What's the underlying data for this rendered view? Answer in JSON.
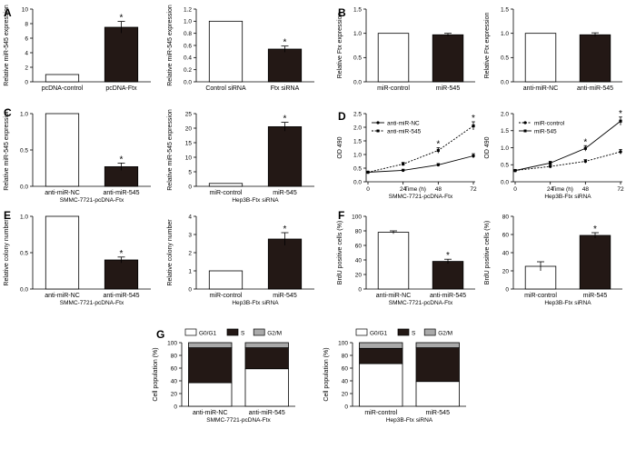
{
  "chart_data": [
    {
      "id": "A1",
      "panel": "A",
      "type": "bar",
      "categories": [
        "pcDNA-control",
        "pcDNA-Ftx"
      ],
      "values": [
        1.0,
        7.5
      ],
      "errors": [
        0,
        0.8
      ],
      "colors": [
        "#ffffff",
        "#231815"
      ],
      "star": [
        false,
        true
      ],
      "ylabel": "Relative miR-545 expression",
      "ylim": [
        0,
        10
      ],
      "ticks": [
        0,
        2,
        4,
        6,
        8,
        10
      ],
      "subtitle": ""
    },
    {
      "id": "A2",
      "panel": "",
      "type": "bar",
      "categories": [
        "Control siRNA",
        "Ftx siRNA"
      ],
      "values": [
        1.0,
        0.54
      ],
      "errors": [
        0,
        0.05
      ],
      "colors": [
        "#ffffff",
        "#231815"
      ],
      "star": [
        false,
        true
      ],
      "ylabel": "Relative miR-545 expression",
      "ylim": [
        0,
        1.2
      ],
      "ticks": [
        0.0,
        0.2,
        0.4,
        0.6,
        0.8,
        1.0,
        1.2
      ],
      "subtitle": ""
    },
    {
      "id": "B1",
      "panel": "B",
      "type": "bar",
      "categories": [
        "miR-control",
        "miR-545"
      ],
      "values": [
        1.0,
        0.97
      ],
      "errors": [
        0,
        0.03
      ],
      "colors": [
        "#ffffff",
        "#231815"
      ],
      "star": [
        false,
        false
      ],
      "ylabel": "Relative Ftx expression",
      "ylim": [
        0,
        1.5
      ],
      "ticks": [
        0.0,
        0.5,
        1.0,
        1.5
      ],
      "subtitle": ""
    },
    {
      "id": "B2",
      "panel": "",
      "type": "bar",
      "categories": [
        "anti-miR-NC",
        "anti-miR-545"
      ],
      "values": [
        1.0,
        0.97
      ],
      "errors": [
        0,
        0.04
      ],
      "colors": [
        "#ffffff",
        "#231815"
      ],
      "star": [
        false,
        false
      ],
      "ylabel": "Relative Ftx expression",
      "ylim": [
        0,
        1.5
      ],
      "ticks": [
        0.0,
        0.5,
        1.0,
        1.5
      ],
      "subtitle": ""
    },
    {
      "id": "C1",
      "panel": "C",
      "type": "bar",
      "categories": [
        "anti-miR-NC",
        "anti-miR-545"
      ],
      "values": [
        1.0,
        0.27
      ],
      "errors": [
        0,
        0.05
      ],
      "colors": [
        "#ffffff",
        "#231815"
      ],
      "star": [
        false,
        true
      ],
      "ylabel": "Relative miR-545 expression",
      "ylim": [
        0,
        1.0
      ],
      "ticks": [
        0.0,
        0.5,
        1.0
      ],
      "subtitle": "SMMC-7721-pcDNA-Ftx"
    },
    {
      "id": "C2",
      "panel": "",
      "type": "bar",
      "categories": [
        "miR-control",
        "miR-545"
      ],
      "values": [
        1.0,
        20.5
      ],
      "errors": [
        0,
        1.5
      ],
      "colors": [
        "#ffffff",
        "#231815"
      ],
      "star": [
        false,
        true
      ],
      "ylabel": "Relative miR-545 expression",
      "ylim": [
        0,
        25
      ],
      "ticks": [
        0,
        5,
        10,
        15,
        20,
        25
      ],
      "subtitle": "Hep3B-Ftx siRNA"
    },
    {
      "id": "D1",
      "panel": "D",
      "type": "line",
      "x": [
        0,
        24,
        48,
        72
      ],
      "xticks": [
        0,
        24,
        48,
        72
      ],
      "xlabel": "Time (h)",
      "ylabel": "OD 490",
      "ylim": [
        0,
        2.5
      ],
      "ticks": [
        0.0,
        0.5,
        1.0,
        1.5,
        2.0,
        2.5
      ],
      "subtitle": "SMMC-7721-pcDNA-Ftx",
      "series": [
        {
          "name": "anti-miR-NC",
          "values": [
            0.35,
            0.42,
            0.62,
            0.95
          ],
          "errors": [
            0.02,
            0.04,
            0.05,
            0.08
          ],
          "dashed": false,
          "marker": "circle"
        },
        {
          "name": "anti-miR-545",
          "values": [
            0.35,
            0.65,
            1.15,
            2.05
          ],
          "errors": [
            0.02,
            0.06,
            0.1,
            0.15
          ],
          "dashed": true,
          "marker": "square"
        }
      ],
      "stars": [
        {
          "series": 1,
          "index": 2
        },
        {
          "series": 1,
          "index": 3
        }
      ]
    },
    {
      "id": "D2",
      "panel": "",
      "type": "line",
      "x": [
        0,
        24,
        48,
        72
      ],
      "xticks": [
        0,
        24,
        48,
        72
      ],
      "xlabel": "Time (h)",
      "ylabel": "OD 490",
      "ylim": [
        0,
        2.0
      ],
      "ticks": [
        0.0,
        0.5,
        1.0,
        1.5,
        2.0
      ],
      "subtitle": "Hep3B-Ftx siRNA",
      "series": [
        {
          "name": "miR-control",
          "values": [
            0.33,
            0.45,
            0.6,
            0.88
          ],
          "errors": [
            0.02,
            0.04,
            0.05,
            0.07
          ],
          "dashed": true,
          "marker": "circle"
        },
        {
          "name": "miR-545",
          "values": [
            0.33,
            0.55,
            0.98,
            1.78
          ],
          "errors": [
            0.02,
            0.05,
            0.08,
            0.12
          ],
          "dashed": false,
          "marker": "square"
        }
      ],
      "stars": [
        {
          "series": 1,
          "index": 2
        },
        {
          "series": 1,
          "index": 3
        }
      ]
    },
    {
      "id": "E1",
      "panel": "E",
      "type": "bar",
      "categories": [
        "anti-miR-NC",
        "anti-miR-545"
      ],
      "values": [
        1.0,
        0.4
      ],
      "errors": [
        0,
        0.04
      ],
      "colors": [
        "#ffffff",
        "#231815"
      ],
      "star": [
        false,
        true
      ],
      "ylabel": "Relative colony number",
      "ylim": [
        0,
        1.0
      ],
      "ticks": [
        0.0,
        0.5,
        1.0
      ],
      "subtitle": "SMMC-7721-pcDNA-Ftx"
    },
    {
      "id": "E2",
      "panel": "",
      "type": "bar",
      "categories": [
        "miR-control",
        "miR-545"
      ],
      "values": [
        1.0,
        2.75
      ],
      "errors": [
        0,
        0.35
      ],
      "colors": [
        "#ffffff",
        "#231815"
      ],
      "star": [
        false,
        true
      ],
      "ylabel": "Relative colony number",
      "ylim": [
        0,
        4
      ],
      "ticks": [
        0,
        1,
        2,
        3,
        4
      ],
      "subtitle": "Hep3B-Ftx siRNA"
    },
    {
      "id": "F1",
      "panel": "F",
      "type": "bar",
      "categories": [
        "anti-miR-NC",
        "anti-miR-545"
      ],
      "values": [
        78,
        38
      ],
      "errors": [
        2,
        3
      ],
      "colors": [
        "#ffffff",
        "#231815"
      ],
      "star": [
        false,
        true
      ],
      "ylabel": "BrdU positive cells (%)",
      "ylim": [
        0,
        100
      ],
      "ticks": [
        0,
        20,
        40,
        60,
        80,
        100
      ],
      "subtitle": "SMMC-7721-pcDNA-Ftx"
    },
    {
      "id": "F2",
      "panel": "",
      "type": "bar",
      "categories": [
        "miR-control",
        "miR-545"
      ],
      "values": [
        25,
        59
      ],
      "errors": [
        5,
        3
      ],
      "colors": [
        "#ffffff",
        "#231815"
      ],
      "star": [
        false,
        true
      ],
      "ylabel": "BrdU positive cells (%)",
      "ylim": [
        0,
        80
      ],
      "ticks": [
        0,
        20,
        40,
        60,
        80
      ],
      "subtitle": "Hep3B-Ftx siRNA"
    },
    {
      "id": "G1",
      "panel": "G",
      "type": "stacked-bar",
      "categories": [
        "anti-miR-NC",
        "anti-miR-545"
      ],
      "ylabel": "Cell population (%)",
      "ylim": [
        0,
        100
      ],
      "ticks": [
        0,
        20,
        40,
        60,
        80,
        100
      ],
      "subtitle": "SMMC-7721-pcDNA-Ftx",
      "series": [
        {
          "name": "G0/G1",
          "values": [
            37,
            59
          ],
          "color": "#ffffff"
        },
        {
          "name": "S",
          "values": [
            55,
            33
          ],
          "color": "#231815"
        },
        {
          "name": "G2/M",
          "values": [
            8,
            8
          ],
          "color": "#aaaaaa"
        }
      ]
    },
    {
      "id": "G2",
      "panel": "",
      "type": "stacked-bar",
      "categories": [
        "miR-control",
        "miR-545"
      ],
      "ylabel": "Cell population (%)",
      "ylim": [
        0,
        100
      ],
      "ticks": [
        0,
        20,
        40,
        60,
        80,
        100
      ],
      "subtitle": "Hep3B-Ftx siRNA",
      "series": [
        {
          "name": "G0/G1",
          "values": [
            67,
            39
          ],
          "color": "#ffffff"
        },
        {
          "name": "S",
          "values": [
            24,
            53
          ],
          "color": "#231815"
        },
        {
          "name": "G2/M",
          "values": [
            9,
            8
          ],
          "color": "#aaaaaa"
        }
      ]
    }
  ]
}
